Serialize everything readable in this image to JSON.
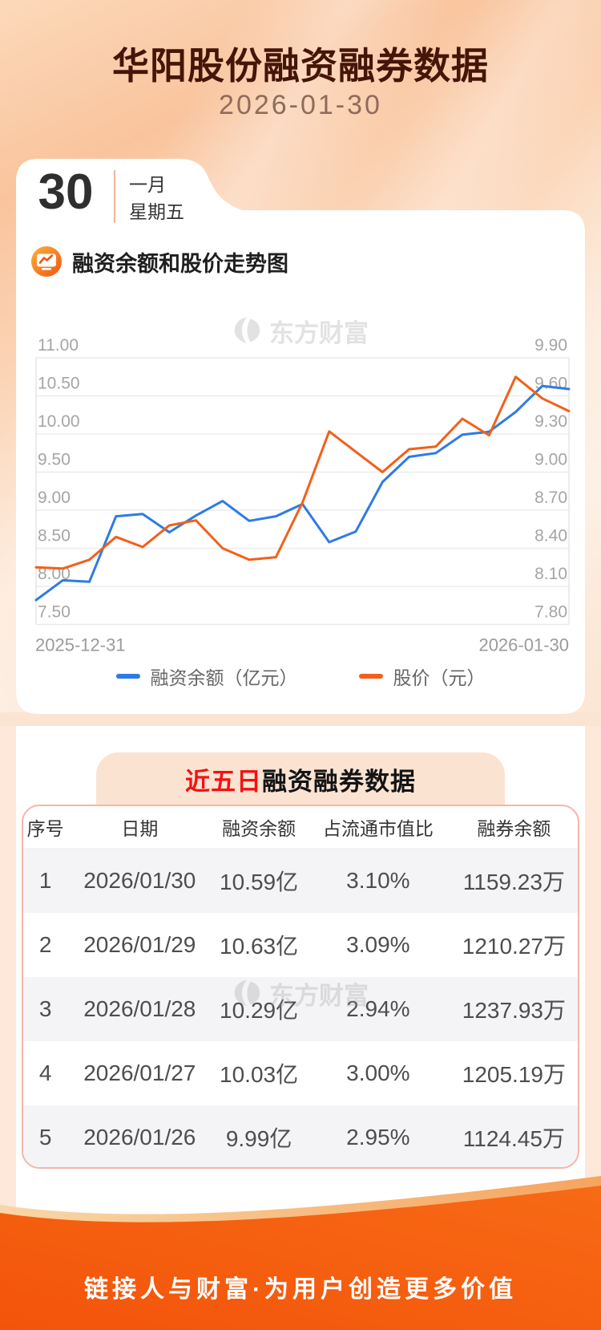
{
  "header": {
    "title": "华阳股份融资融券数据",
    "date": "2026-01-30",
    "calendar": {
      "day": "30",
      "month": "一月",
      "weekday": "星期五"
    }
  },
  "chart_section": {
    "title": "融资余额和股价走势图"
  },
  "watermark": {
    "text": "东方财富"
  },
  "chart_data": {
    "type": "line",
    "title": "融资余额和股价走势图",
    "x_start_label": "2025-12-31",
    "x_end_label": "2026-01-30",
    "grid": true,
    "legend_position": "bottom",
    "left_axis": {
      "max": 11.0,
      "step": 0.5,
      "ticks": [
        "11.00",
        "10.50",
        "10.00",
        "9.50",
        "9.00",
        "8.50",
        "8.00",
        "7.50"
      ]
    },
    "right_axis": {
      "max": 9.9,
      "step": 0.3,
      "ticks": [
        "9.90",
        "9.60",
        "9.30",
        "9.00",
        "8.70",
        "8.40",
        "8.10",
        "7.80"
      ]
    },
    "series": [
      {
        "name": "融资余额（亿元）",
        "axis": "left",
        "color": "#2e7be4",
        "values": [
          7.82,
          8.08,
          8.06,
          8.92,
          8.95,
          8.71,
          8.93,
          9.12,
          8.86,
          8.92,
          9.08,
          8.58,
          8.72,
          9.37,
          9.7,
          9.75,
          9.99,
          10.03,
          10.29,
          10.63,
          10.59
        ]
      },
      {
        "name": "股价（元）",
        "axis": "right",
        "color": "#f2601a",
        "values": [
          8.25,
          8.24,
          8.31,
          8.49,
          8.41,
          8.58,
          8.62,
          8.4,
          8.31,
          8.33,
          8.76,
          9.32,
          9.16,
          9.0,
          9.18,
          9.2,
          9.42,
          9.29,
          9.75,
          9.58,
          9.48
        ]
      }
    ]
  },
  "table_section": {
    "title_highlight": "近五日",
    "title_rest": "融资融券数据",
    "columns": [
      "序号",
      "日期",
      "融资余额",
      "占流通市值比",
      "融券余额"
    ],
    "rows": [
      [
        "1",
        "2026/01/30",
        "10.59亿",
        "3.10%",
        "1159.23万"
      ],
      [
        "2",
        "2026/01/29",
        "10.63亿",
        "3.09%",
        "1210.27万"
      ],
      [
        "3",
        "2026/01/28",
        "10.29亿",
        "2.94%",
        "1237.93万"
      ],
      [
        "4",
        "2026/01/27",
        "10.03亿",
        "3.00%",
        "1205.19万"
      ],
      [
        "5",
        "2026/01/26",
        "9.99亿",
        "2.95%",
        "1124.45万"
      ]
    ]
  },
  "footer": {
    "slogan": "链接人与财富·为用户创造更多价值"
  },
  "colors": {
    "blue_line": "#2e7be4",
    "orange_line": "#f2601a",
    "footer_orange": "#f3560b",
    "title_brown": "#451508",
    "highlight_red": "#f31111",
    "tab_peach": "#fbe3d2",
    "row_alt": "#f4f4f6",
    "panel_border": "#f6b4ac"
  }
}
